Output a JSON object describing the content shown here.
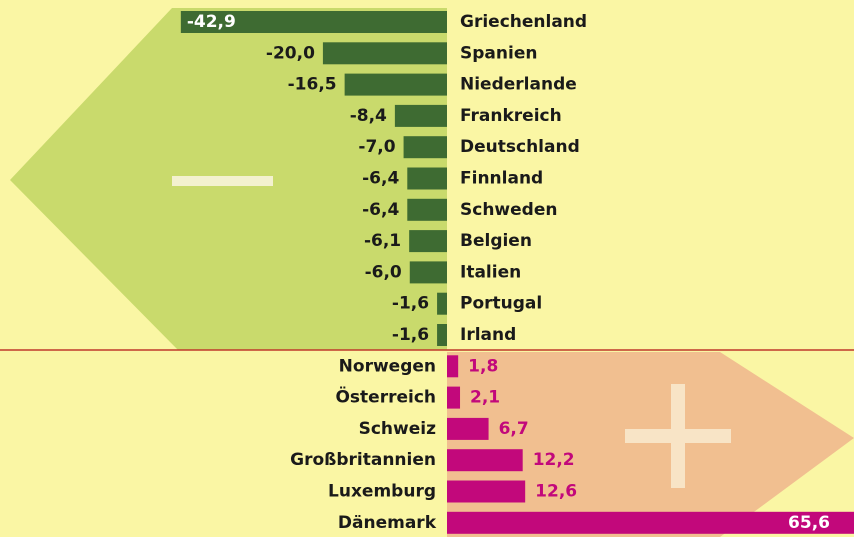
{
  "chart_data": {
    "type": "bar",
    "categories": [
      "Griechenland",
      "Spanien",
      "Niederlande",
      "Frankreich",
      "Deutschland",
      "Finnland",
      "Schweden",
      "Belgien",
      "Italien",
      "Portugal",
      "Irland",
      "Norwegen",
      "Österreich",
      "Schweiz",
      "Großbritannien",
      "Luxemburg",
      "Dänemark"
    ],
    "values": [
      -42.9,
      -20.0,
      -16.5,
      -8.4,
      -7.0,
      -6.4,
      -6.4,
      -6.1,
      -6.0,
      -1.6,
      -1.6,
      1.8,
      2.1,
      6.7,
      12.2,
      12.6,
      65.6
    ],
    "value_labels": [
      "-42,9",
      "-20,0",
      "-16,5",
      "-8,4",
      "-7,0",
      "-6,4",
      "-6,4",
      "-6,1",
      "-6,0",
      "-1,6",
      "-1,6",
      "1,8",
      "2,1",
      "6,7",
      "12,2",
      "12,6",
      "65,6"
    ],
    "colors": {
      "negative": "#3e6b32",
      "positive": "#c2087b"
    }
  }
}
